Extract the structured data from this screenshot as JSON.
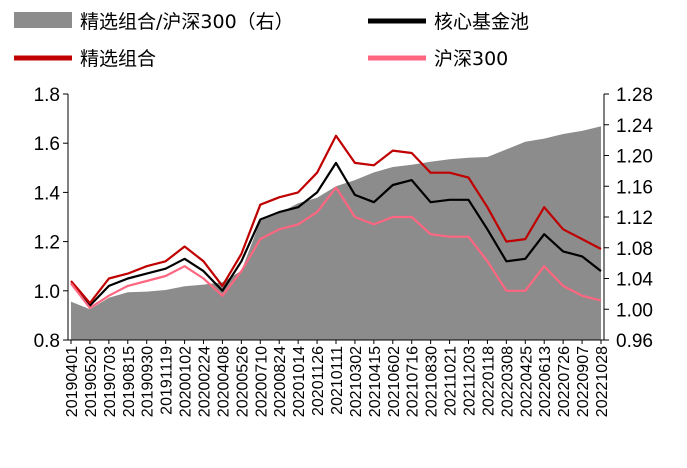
{
  "chart_data": {
    "type": "line",
    "title": "",
    "xlabel": "",
    "ylabel": "",
    "ylabel_right": "",
    "legend_position": "top",
    "grid": false,
    "ylim": [
      0.8,
      1.8
    ],
    "ylim_right": [
      0.96,
      1.28
    ],
    "yticks": [
      "0.8",
      "1.0",
      "1.2",
      "1.4",
      "1.6",
      "1.8"
    ],
    "yticks_right": [
      "0.96",
      "1.00",
      "1.04",
      "1.08",
      "1.12",
      "1.16",
      "1.20",
      "1.24",
      "1.28"
    ],
    "x": [
      "20190401",
      "20190520",
      "20190703",
      "20190815",
      "20190930",
      "20191119",
      "20200102",
      "20200224",
      "20200408",
      "20200526",
      "20200710",
      "20200824",
      "20201014",
      "20201126",
      "20210111",
      "20210302",
      "20210415",
      "20210602",
      "20210716",
      "20210830",
      "20211021",
      "20211203",
      "20220118",
      "20220308",
      "20220425",
      "20220613",
      "20220726",
      "20220907",
      "20221028"
    ],
    "series": [
      {
        "name": "精选组合/沪深300（右）",
        "axis": "right",
        "kind": "area",
        "color": "#8c8c8c",
        "values": [
          1.01,
          1.0,
          1.015,
          1.022,
          1.023,
          1.025,
          1.03,
          1.032,
          1.035,
          1.05,
          1.115,
          1.125,
          1.138,
          1.145,
          1.16,
          1.168,
          1.178,
          1.185,
          1.188,
          1.192,
          1.195,
          1.197,
          1.198,
          1.208,
          1.218,
          1.222,
          1.228,
          1.232,
          1.238
        ]
      },
      {
        "name": "核心基金池",
        "axis": "left",
        "kind": "line",
        "color": "#000000",
        "values": [
          1.03,
          0.94,
          1.02,
          1.05,
          1.07,
          1.09,
          1.13,
          1.08,
          1.0,
          1.12,
          1.29,
          1.32,
          1.34,
          1.4,
          1.52,
          1.39,
          1.36,
          1.43,
          1.45,
          1.36,
          1.37,
          1.37,
          1.25,
          1.12,
          1.13,
          1.23,
          1.16,
          1.14,
          1.08
        ]
      },
      {
        "name": "精选组合",
        "axis": "left",
        "kind": "line",
        "color": "#c00000",
        "values": [
          1.04,
          0.95,
          1.05,
          1.07,
          1.1,
          1.12,
          1.18,
          1.12,
          1.02,
          1.15,
          1.35,
          1.38,
          1.4,
          1.48,
          1.63,
          1.52,
          1.51,
          1.57,
          1.56,
          1.48,
          1.48,
          1.46,
          1.34,
          1.2,
          1.21,
          1.34,
          1.25,
          1.21,
          1.17
        ]
      },
      {
        "name": "沪深300",
        "axis": "left",
        "kind": "line",
        "color": "#ff6680",
        "values": [
          1.03,
          0.93,
          0.98,
          1.02,
          1.04,
          1.06,
          1.1,
          1.05,
          0.98,
          1.08,
          1.21,
          1.25,
          1.27,
          1.32,
          1.42,
          1.3,
          1.27,
          1.3,
          1.3,
          1.23,
          1.22,
          1.22,
          1.12,
          1.0,
          1.0,
          1.1,
          1.02,
          0.98,
          0.96
        ]
      }
    ]
  }
}
